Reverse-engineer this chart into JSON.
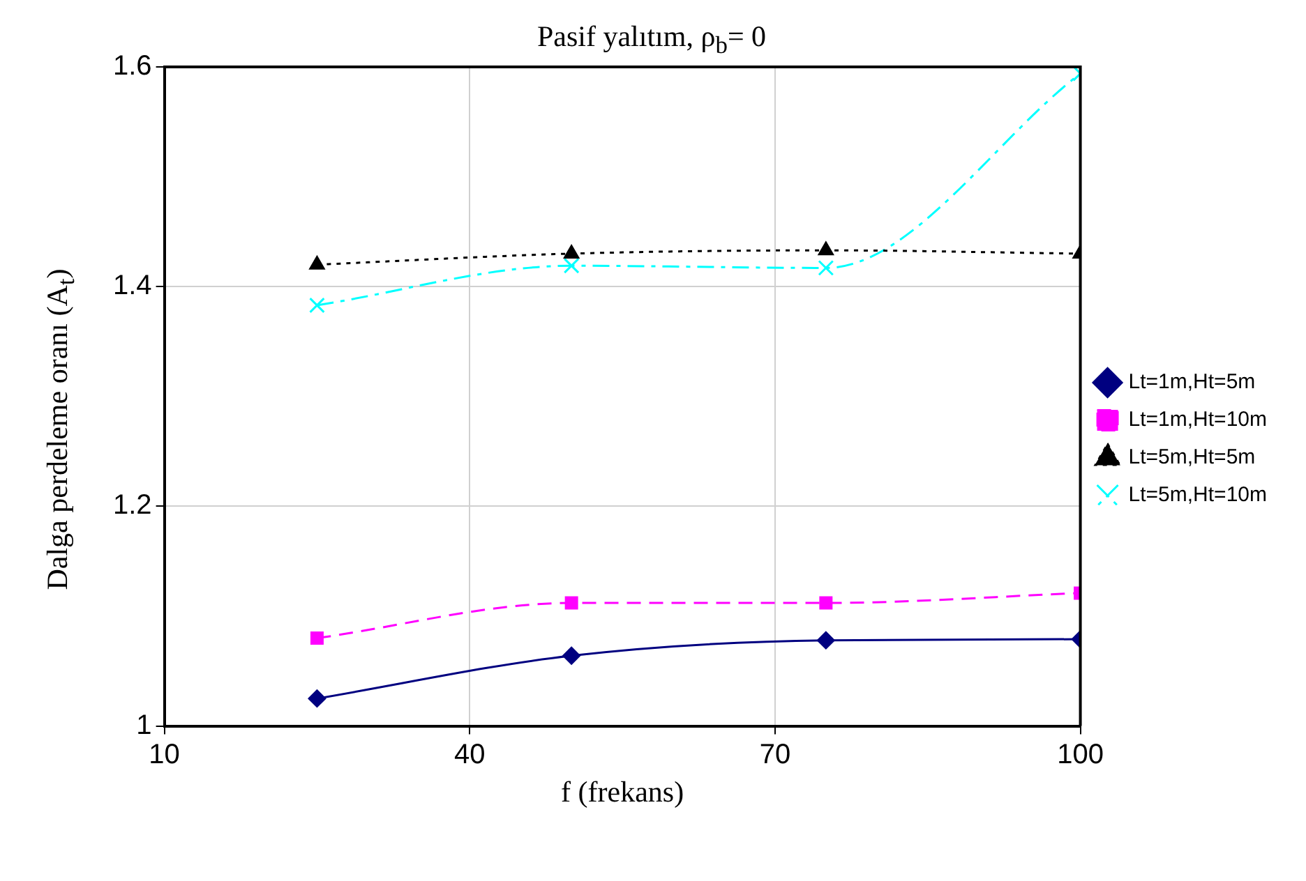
{
  "chart_data": {
    "type": "line",
    "title": "Pasif yalıtım, ρ$_{b}$= 0",
    "xlabel": "f (frekans)",
    "ylabel": "Dalga perdeleme oranı (A$_{t}$)",
    "x": [
      25,
      50,
      75,
      100
    ],
    "series": [
      {
        "name": "Lt=1m,Ht=5m",
        "color": "#000080",
        "values": [
          1.025,
          1.064,
          1.078,
          1.079
        ],
        "marker": "diamond",
        "line_style": "solid"
      },
      {
        "name": "Lt=1m,Ht=10m",
        "color": "#ff00ff",
        "values": [
          1.08,
          1.112,
          1.112,
          1.121
        ],
        "marker": "square",
        "line_style": "dashed"
      },
      {
        "name": "Lt=5m,Ht=5m",
        "color": "#000000",
        "values": [
          1.42,
          1.43,
          1.433,
          1.43
        ],
        "marker": "triangle",
        "line_style": "dotted"
      },
      {
        "name": "Lt=5m,Ht=10m",
        "color": "#00ffff",
        "values": [
          1.383,
          1.419,
          1.417,
          1.594
        ],
        "marker": "cross",
        "line_style": "dashdot"
      }
    ],
    "xlim": [
      10,
      100
    ],
    "xticks": [
      10,
      40,
      70,
      100
    ],
    "ylim": [
      1,
      1.6
    ],
    "yticks": [
      1,
      1.2,
      1.4,
      1.6
    ],
    "grid": true,
    "legend": "right"
  }
}
